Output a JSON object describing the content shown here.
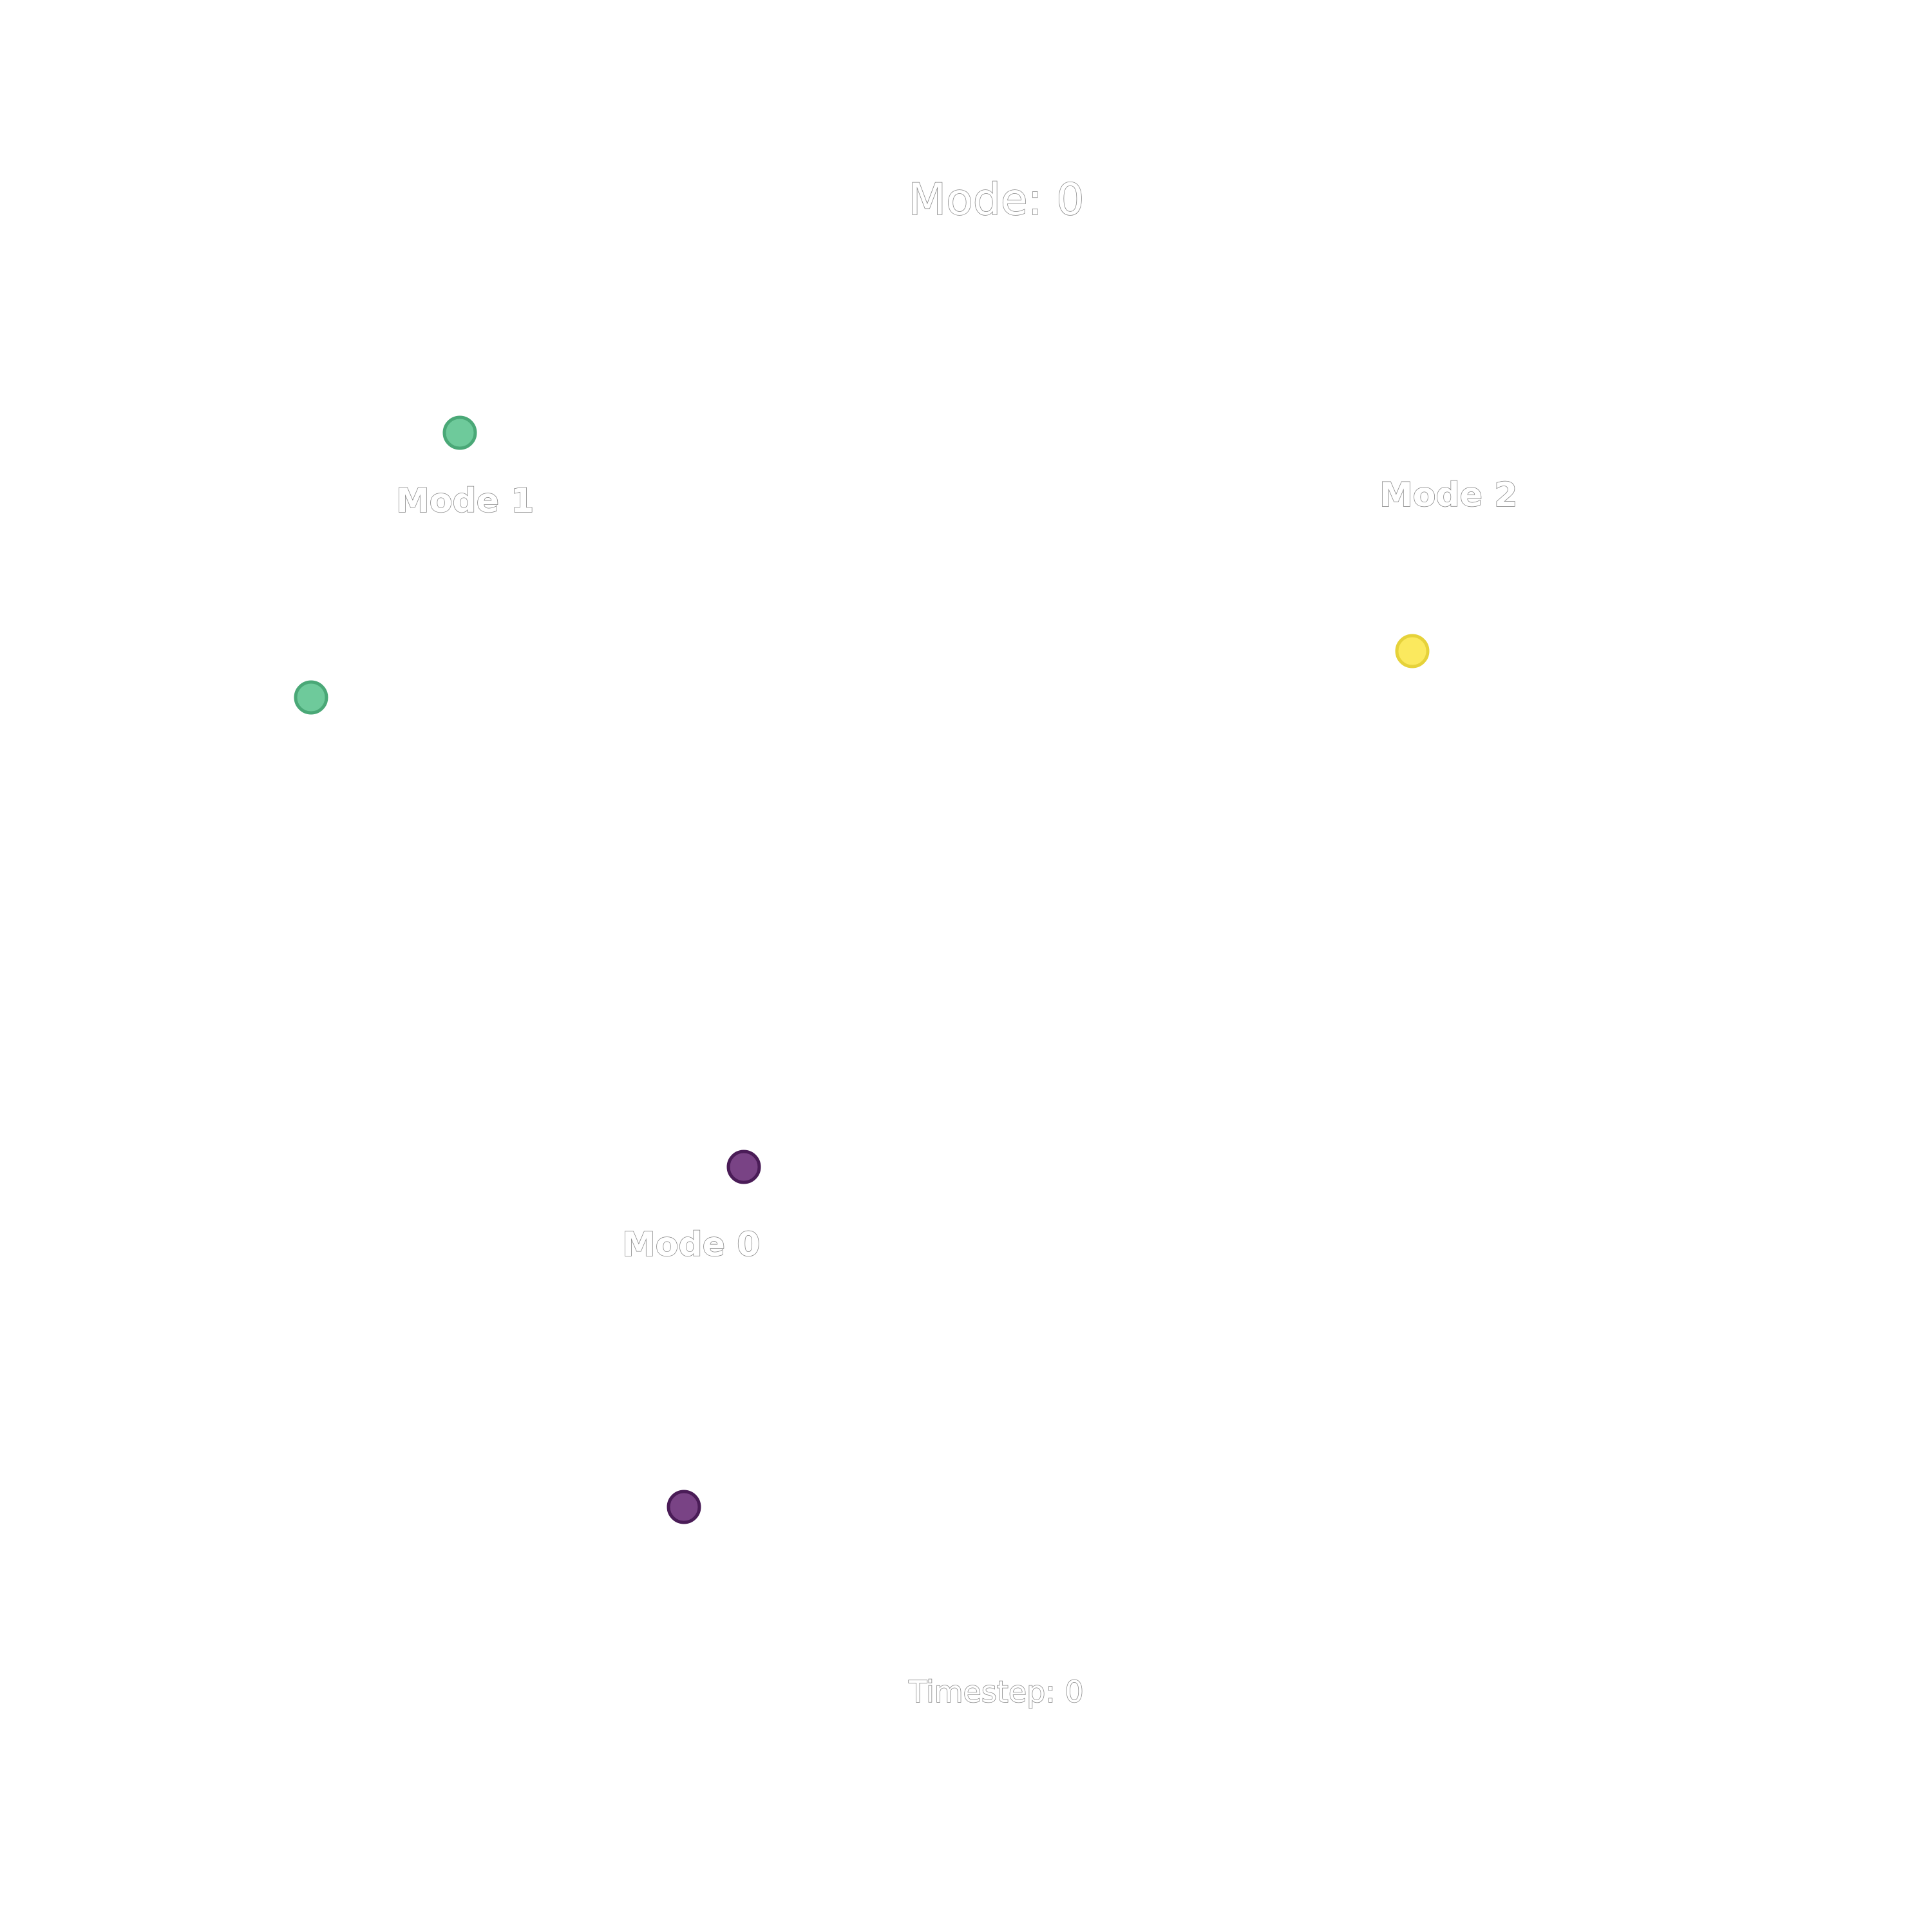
{
  "title": "Mode: 0",
  "timestep_label": "Timestep: 0",
  "chart_data": {
    "type": "scatter",
    "title": "Mode: 0",
    "xlabel": "",
    "ylabel": "",
    "grid": false,
    "axes_visible": false,
    "xlim": [
      0,
      1
    ],
    "ylim": [
      0,
      1
    ],
    "points": [
      {
        "x": 0.238,
        "y": 0.776,
        "mode": 1,
        "color": "#5ec490"
      },
      {
        "x": 0.161,
        "y": 0.639,
        "mode": 1,
        "color": "#5ec490"
      },
      {
        "x": 0.731,
        "y": 0.663,
        "mode": 2,
        "color": "#fbe74d"
      },
      {
        "x": 0.385,
        "y": 0.396,
        "mode": 0,
        "color": "#6a2f78"
      },
      {
        "x": 0.354,
        "y": 0.22,
        "mode": 0,
        "color": "#6a2f78"
      }
    ],
    "annotations": [
      {
        "text": "Mode 1",
        "x": 0.205,
        "y": 0.735
      },
      {
        "text": "Mode 2",
        "x": 0.714,
        "y": 0.738
      },
      {
        "text": "Mode 0",
        "x": 0.322,
        "y": 0.35
      }
    ],
    "mode_colors": {
      "0": "#6a2f78",
      "1": "#5ec490",
      "2": "#fbe74d"
    },
    "mode_edge_colors": {
      "0": "#4a1c57",
      "1": "#4aa877",
      "2": "#e6d23a"
    }
  }
}
